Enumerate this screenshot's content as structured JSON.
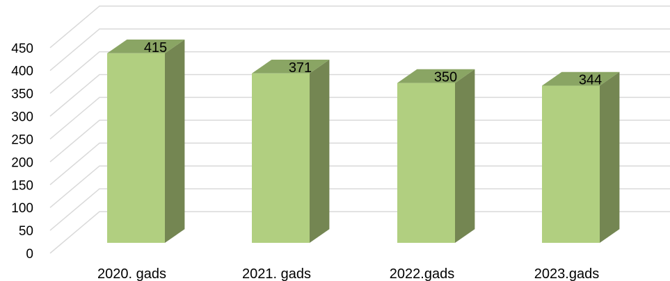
{
  "chart_data": {
    "type": "bar",
    "style": "3d-column",
    "categories": [
      "2020. gads",
      "2021. gads",
      "2022.gads",
      "2023.gads"
    ],
    "values": [
      415,
      371,
      350,
      344
    ],
    "data_labels": [
      "415",
      "371",
      "350",
      "344"
    ],
    "yticks": [
      "0",
      "50",
      "100",
      "150",
      "200",
      "250",
      "300",
      "350",
      "400",
      "450"
    ],
    "ylim": [
      0,
      450
    ],
    "grid": true,
    "legend": "none",
    "colors": {
      "front": "#b1cf80",
      "side": "#748652",
      "top": "#8aa564",
      "outline": "#5e7040",
      "grid": "#d9d9d9"
    }
  }
}
